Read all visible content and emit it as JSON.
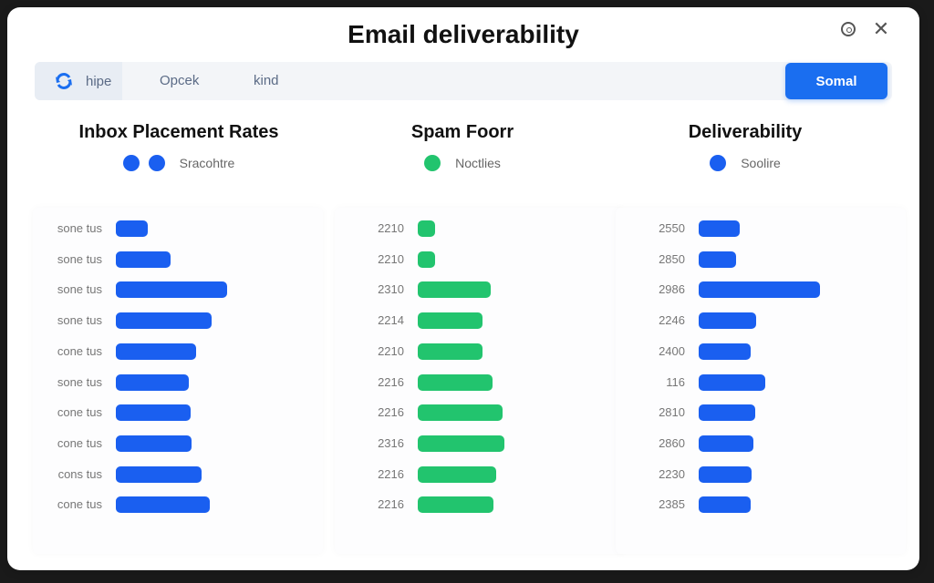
{
  "window": {
    "title": "Email deliverability"
  },
  "toolbar": {
    "items": [
      "hipe",
      "Opcek",
      "kind"
    ],
    "primary_button": "Somal"
  },
  "icons": {
    "toolbar": "refresh-icon",
    "help": "help-icon",
    "close": "close-icon"
  },
  "colors": {
    "blue": "#1a5ff0",
    "green": "#22c46e",
    "accent": "#1a6ef0"
  },
  "chart_data": [
    {
      "type": "bar",
      "orientation": "horizontal",
      "title": "Inbox Placement Rates",
      "legend": [
        "Sracohtre"
      ],
      "legend_dot_count": 2,
      "color": "#1a5ff0",
      "categories": [
        "sone tus",
        "sone tus",
        "sone tus",
        "sone tus",
        "cone tus",
        "sone tus",
        "cone tus",
        "cone tus",
        "cons tus",
        "cone tus"
      ],
      "values": [
        35,
        60,
        122,
        105,
        88,
        80,
        82,
        83,
        94,
        103
      ],
      "xlim": [
        0,
        210
      ]
    },
    {
      "type": "bar",
      "orientation": "horizontal",
      "title": "Spam Foorr",
      "legend": [
        "Noctlies"
      ],
      "legend_dot_count": 1,
      "color": "#22c46e",
      "categories": [
        "2210",
        "2210",
        "2310",
        "2214",
        "2210",
        "2216",
        "2216",
        "2316",
        "2216",
        "2216"
      ],
      "values": [
        19,
        19,
        80,
        71,
        71,
        82,
        93,
        95,
        86,
        83
      ],
      "xlim": [
        0,
        210
      ]
    },
    {
      "type": "bar",
      "orientation": "horizontal",
      "title": "Deliverability",
      "legend": [
        "Soolire"
      ],
      "legend_dot_count": 1,
      "color": "#1a5ff0",
      "categories": [
        "2550",
        "2850",
        "2986",
        "2246",
        "2400",
        "116",
        "2810",
        "2860",
        "2230",
        "2385"
      ],
      "values": [
        45,
        41,
        133,
        63,
        57,
        73,
        62,
        60,
        58,
        57
      ],
      "xlim": [
        0,
        210
      ]
    }
  ]
}
